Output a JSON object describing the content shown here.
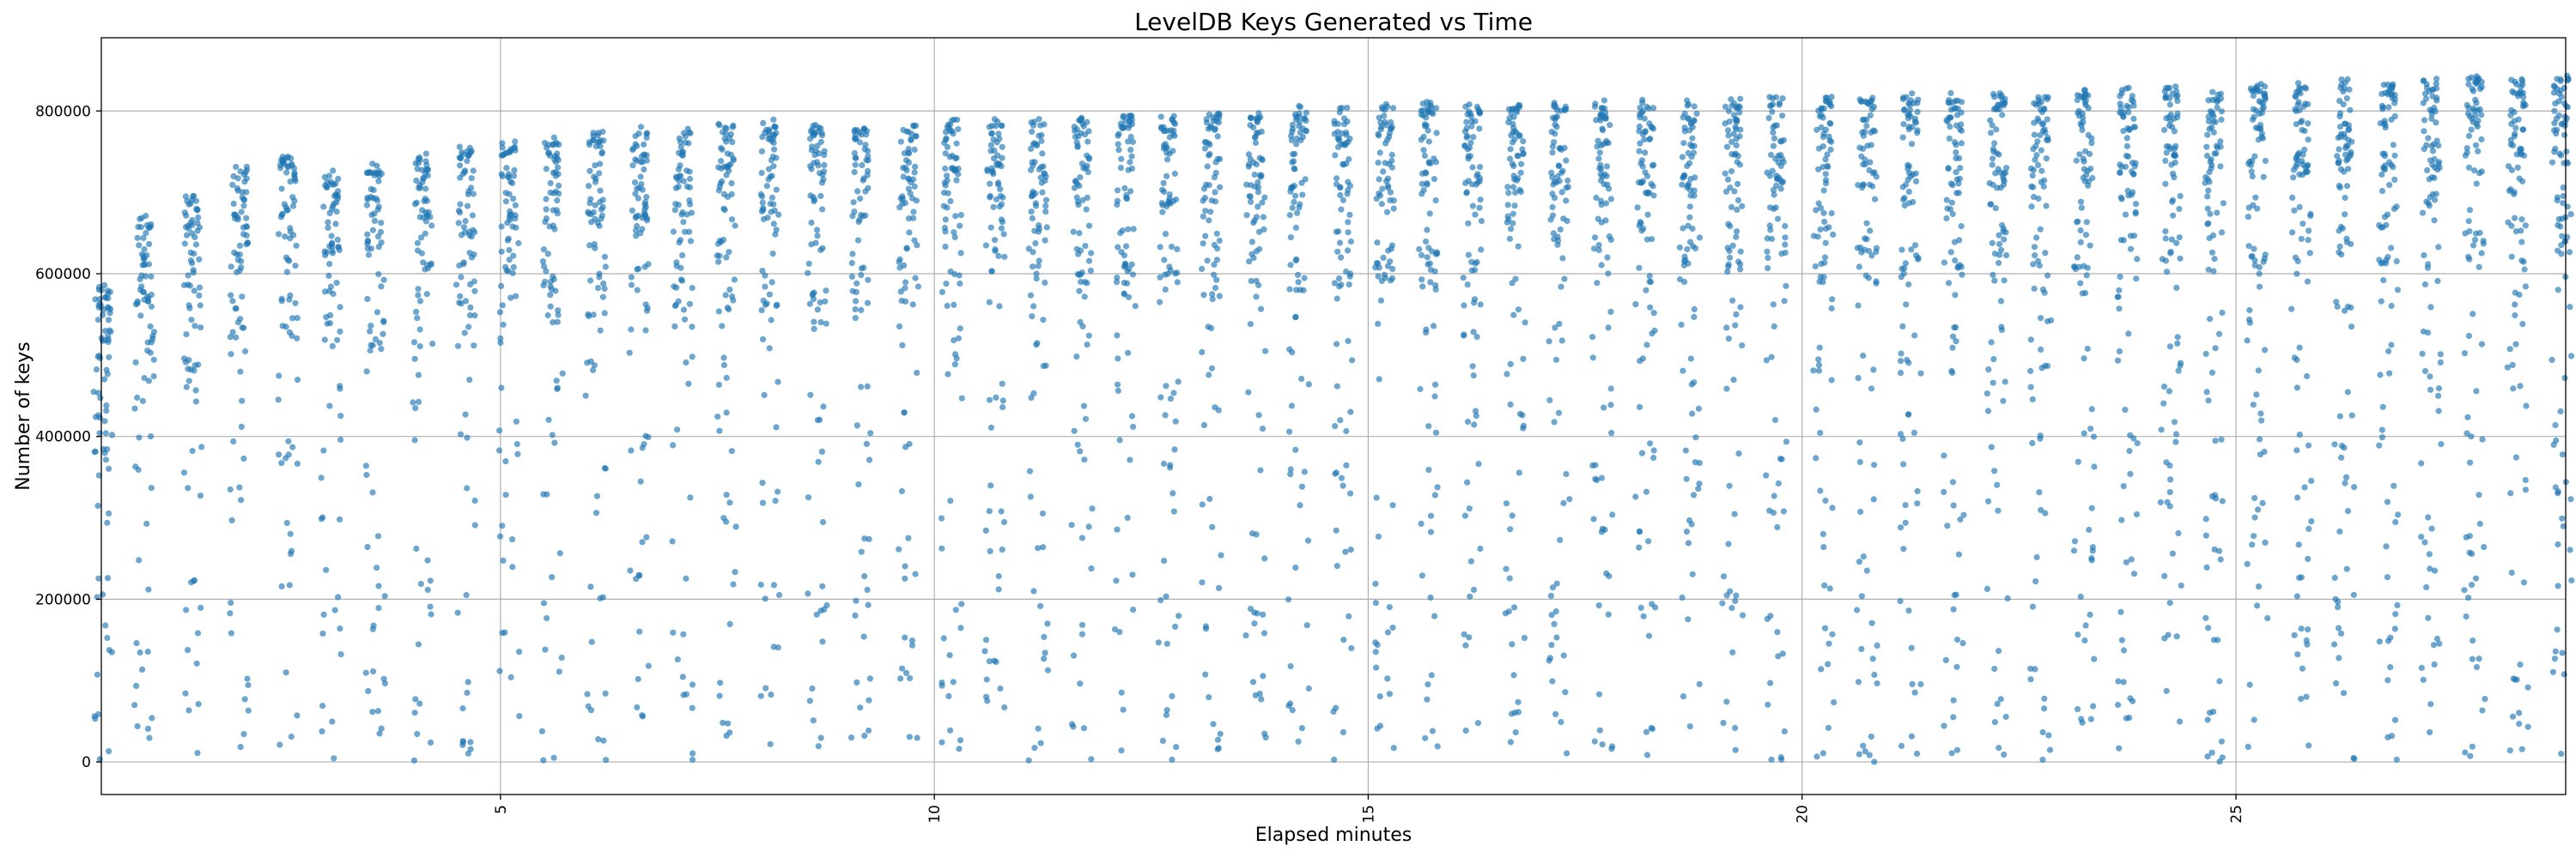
{
  "chart_data": {
    "type": "scatter",
    "title": "LevelDB Keys Generated vs Time",
    "xlabel": "Elapsed minutes",
    "ylabel": "Number of keys",
    "xlim": [
      0.4,
      28.8
    ],
    "ylim": [
      -40000,
      890000
    ],
    "xticks": [
      5,
      10,
      15,
      20,
      25
    ],
    "xtick_labels": [
      "5",
      "10",
      "15",
      "20",
      "25"
    ],
    "xtick_rotation": 90,
    "yticks": [
      0,
      200000,
      400000,
      600000,
      800000
    ],
    "ytick_labels": [
      "0",
      "200000",
      "400000",
      "600000",
      "800000"
    ],
    "grid": true,
    "marker_color": "#1f77b4",
    "marker_alpha": 0.65,
    "series": [
      {
        "points_note": "dense dot columns every ~0.5 minutes",
        "column_x": [
          0.42,
          0.9,
          1.45,
          2.0,
          2.55,
          3.05,
          3.55,
          4.1,
          4.6,
          5.1,
          5.6,
          6.1,
          6.6,
          7.1,
          7.6,
          8.1,
          8.65,
          9.15,
          9.7,
          10.2,
          10.7,
          11.2,
          11.7,
          12.2,
          12.7,
          13.2,
          13.7,
          14.2,
          14.7,
          15.2,
          15.7,
          16.2,
          16.7,
          17.2,
          17.7,
          18.2,
          18.7,
          19.2,
          19.7,
          20.25,
          20.75,
          21.25,
          21.75,
          22.25,
          22.75,
          23.25,
          23.75,
          24.25,
          24.75,
          25.25,
          25.75,
          26.25,
          26.75,
          27.25,
          27.75,
          28.25,
          28.75
        ],
        "column_top": [
          580000,
          665000,
          685000,
          720000,
          735000,
          720000,
          725000,
          740000,
          745000,
          755000,
          760000,
          765000,
          770000,
          770000,
          775000,
          780000,
          775000,
          775000,
          775000,
          780000,
          780000,
          780000,
          785000,
          785000,
          785000,
          790000,
          790000,
          795000,
          798000,
          798000,
          800000,
          800000,
          800000,
          800000,
          802000,
          803000,
          804000,
          805000,
          806000,
          807000,
          808000,
          810000,
          811000,
          812000,
          813000,
          815000,
          818000,
          820000,
          822000,
          825000,
          827000,
          828000,
          829000,
          830000,
          832000,
          835000,
          838000
        ]
      }
    ]
  }
}
